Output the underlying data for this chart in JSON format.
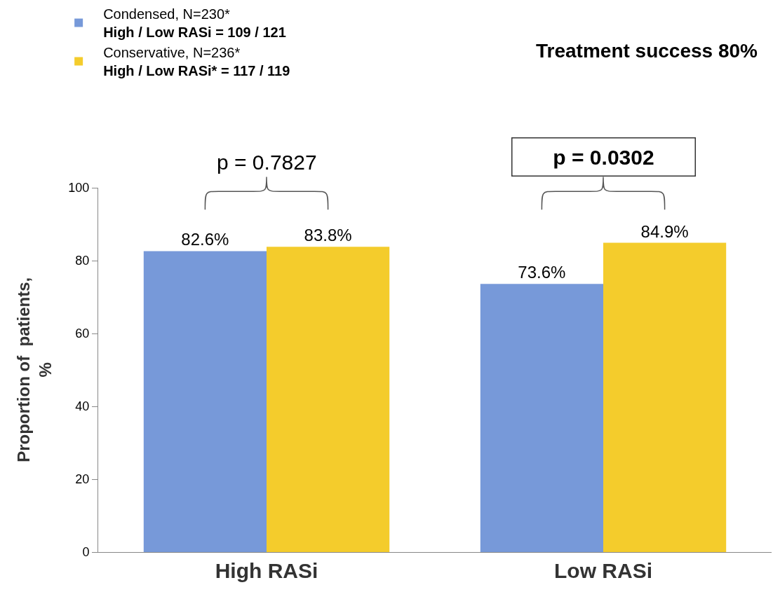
{
  "chart_data": {
    "type": "bar",
    "title": "Treatment success 80%",
    "ylabel": "Proportion of  patients,\n%",
    "categories": [
      "High RASi",
      "Low RASi"
    ],
    "series": [
      {
        "name": "Condensed, N=230*\nHigh / Low RASi = 109 / 121",
        "color": "#7799d9",
        "values": [
          82.6,
          73.6
        ],
        "value_labels": [
          "82.6%",
          "73.6%"
        ]
      },
      {
        "name": "Conservative, N=236*\nHigh / Low RASi* = 117 / 119",
        "color": "#f4cc2c",
        "values": [
          83.8,
          84.9
        ],
        "value_labels": [
          "83.8%",
          "84.9%"
        ]
      }
    ],
    "ylim": [
      0,
      100
    ],
    "yticks": [
      0,
      20,
      40,
      60,
      80,
      100
    ],
    "grid": false,
    "legend": "top left",
    "annotations": [
      "p = 0.7827",
      "p = 0.0302"
    ]
  }
}
